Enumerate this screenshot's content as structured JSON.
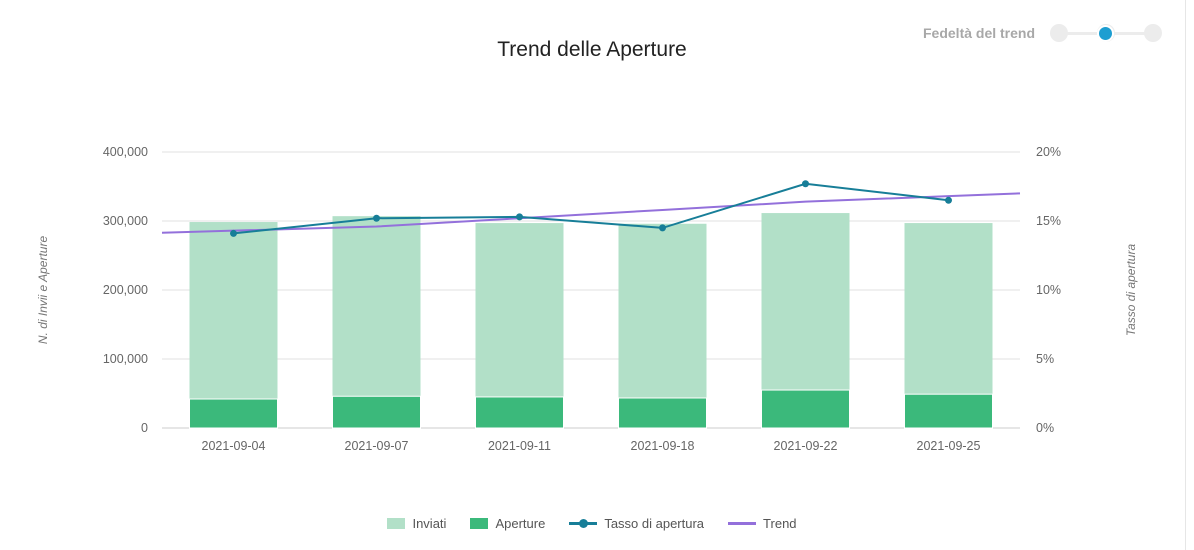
{
  "chart_data": {
    "type": "bar",
    "title": "Trend delle Aperture",
    "categories": [
      "2021-09-04",
      "2021-09-07",
      "2021-09-11",
      "2021-09-18",
      "2021-09-22",
      "2021-09-25"
    ],
    "series": [
      {
        "name": "Inviati",
        "type": "bar",
        "axis": "left",
        "color": "#b2e0c8",
        "values": [
          298500,
          307000,
          297000,
          296000,
          311500,
          297000
        ]
      },
      {
        "name": "Aperture",
        "type": "bar",
        "axis": "left",
        "color": "#3bb97b",
        "values": [
          42000,
          46000,
          45000,
          43500,
          55000,
          49000
        ]
      },
      {
        "name": "Tasso di apertura",
        "type": "line",
        "axis": "right",
        "color": "#177e98",
        "values": [
          14.1,
          15.2,
          15.3,
          14.5,
          17.7,
          16.5
        ]
      },
      {
        "name": "Trend",
        "type": "line",
        "axis": "right",
        "color": "#9370db",
        "values": [
          14.3,
          14.6,
          15.2,
          15.8,
          16.4,
          16.8
        ]
      }
    ],
    "ylabel": "N. di Invii e Aperture",
    "y2label": "Tasso di apertura",
    "ylim": [
      0,
      400000
    ],
    "y2lim": [
      0,
      20
    ],
    "yticks": [
      "0",
      "100,000",
      "200,000",
      "300,000",
      "400,000"
    ],
    "y2ticks": [
      "0%",
      "5%",
      "10%",
      "15%",
      "20%"
    ],
    "grid": true,
    "legend": "bottom"
  },
  "control": {
    "label": "Fedeltà del trend",
    "levels": 3,
    "selected": 2
  }
}
